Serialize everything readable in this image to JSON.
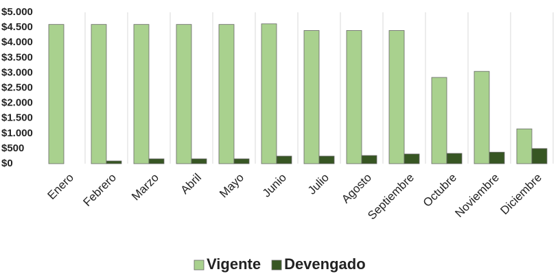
{
  "chart_data": {
    "type": "bar",
    "categories": [
      "Enero",
      "Febrero",
      "Marzo",
      "Abril",
      "Mayo",
      "Junio",
      "Julio",
      "Agosto",
      "Septiembre",
      "Octubre",
      "Noviembre",
      "Diciembre"
    ],
    "series": [
      {
        "name": "Vigente",
        "color": "#a9d18e",
        "values": [
          4600,
          4600,
          4600,
          4600,
          4600,
          4620,
          4400,
          4400,
          4400,
          2850,
          3050,
          1150
        ]
      },
      {
        "name": "Devengado",
        "color": "#375623",
        "values": [
          0,
          90,
          160,
          160,
          160,
          250,
          250,
          270,
          320,
          340,
          380,
          500
        ]
      }
    ],
    "ylim": [
      0,
      5000
    ],
    "yticks": [
      {
        "value": 0,
        "label": "$0"
      },
      {
        "value": 500,
        "label": "$500"
      },
      {
        "value": 1000,
        "label": "$1.000"
      },
      {
        "value": 1500,
        "label": "$1.500"
      },
      {
        "value": 2000,
        "label": "$2.000"
      },
      {
        "value": 2500,
        "label": "$2.500"
      },
      {
        "value": 3000,
        "label": "$3.000"
      },
      {
        "value": 3500,
        "label": "$3.500"
      },
      {
        "value": 4000,
        "label": "$4.000"
      },
      {
        "value": 4500,
        "label": "$4.500"
      },
      {
        "value": 5000,
        "label": "$5.000"
      }
    ],
    "grid": true,
    "legend": "bottom"
  }
}
